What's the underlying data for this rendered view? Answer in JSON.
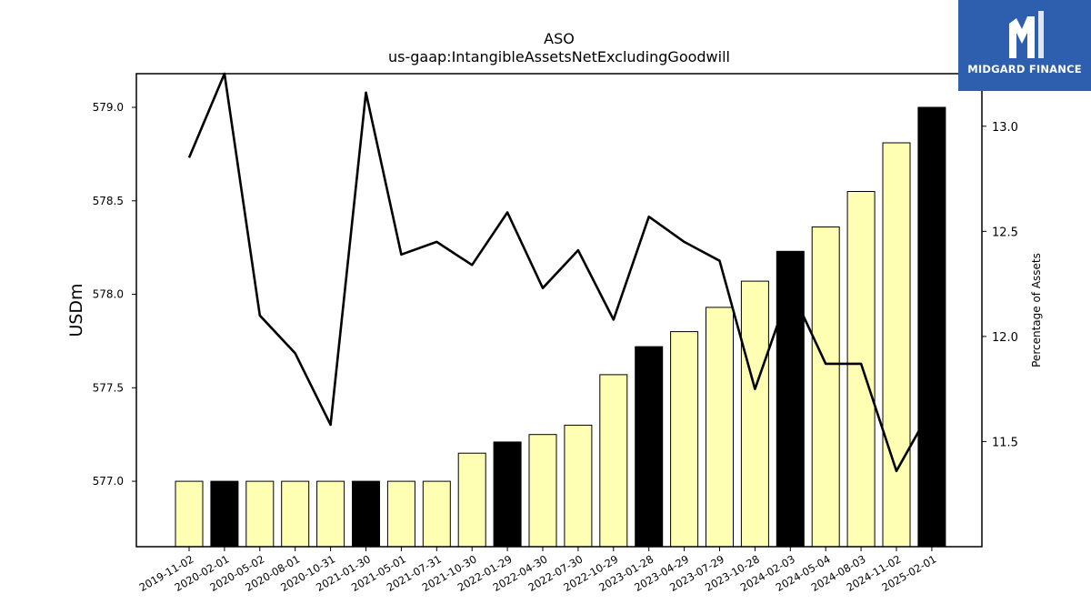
{
  "brand": {
    "name": "MIDGARD FINANCE",
    "icon": "midgard-logo-mark",
    "background_color": "#2d5fae"
  },
  "chart_data": {
    "type": "bar",
    "title": "ASO",
    "subtitle": "us-gaap:IntangibleAssetsNetExcludingGoodwill",
    "ylabel": "USDm",
    "y2label": "Percentage of Assets",
    "ylim": [
      576.65,
      579.18
    ],
    "y2lim": [
      11.0,
      13.25
    ],
    "yticks": [
      "577.0",
      "577.5",
      "578.0",
      "578.5",
      "579.0"
    ],
    "y2ticks": [
      "11.5",
      "12.0",
      "12.5",
      "13.0"
    ],
    "grid": false,
    "categories": [
      "2019-11-02",
      "2020-02-01",
      "2020-05-02",
      "2020-08-01",
      "2020-10-31",
      "2021-01-30",
      "2021-05-01",
      "2021-07-31",
      "2021-10-30",
      "2022-01-29",
      "2022-04-30",
      "2022-07-30",
      "2022-10-29",
      "2023-01-28",
      "2023-04-29",
      "2023-07-29",
      "2023-10-28",
      "2024-02-03",
      "2024-05-04",
      "2024-08-03",
      "2024-11-02",
      "2025-02-01"
    ],
    "bar_values": [
      577.0,
      577.0,
      577.0,
      577.0,
      577.0,
      577.0,
      577.0,
      577.0,
      577.15,
      577.21,
      577.25,
      577.3,
      577.57,
      577.72,
      577.8,
      577.93,
      578.07,
      578.23,
      578.36,
      578.55,
      578.81,
      579.0
    ],
    "bar_highlight": [
      false,
      true,
      false,
      false,
      false,
      true,
      false,
      false,
      false,
      true,
      false,
      false,
      false,
      true,
      false,
      false,
      false,
      true,
      false,
      false,
      false,
      true
    ],
    "line_values": [
      12.85,
      13.25,
      12.1,
      11.92,
      11.58,
      13.16,
      12.39,
      12.45,
      12.34,
      12.59,
      12.23,
      12.41,
      12.08,
      12.57,
      12.45,
      12.36,
      11.75,
      12.23,
      11.87,
      11.87,
      11.36,
      11.66
    ],
    "colors": {
      "bar": "#ffffb3",
      "bar_highlight": "#000000",
      "bar_edge": "#000000",
      "line": "#000000"
    }
  }
}
